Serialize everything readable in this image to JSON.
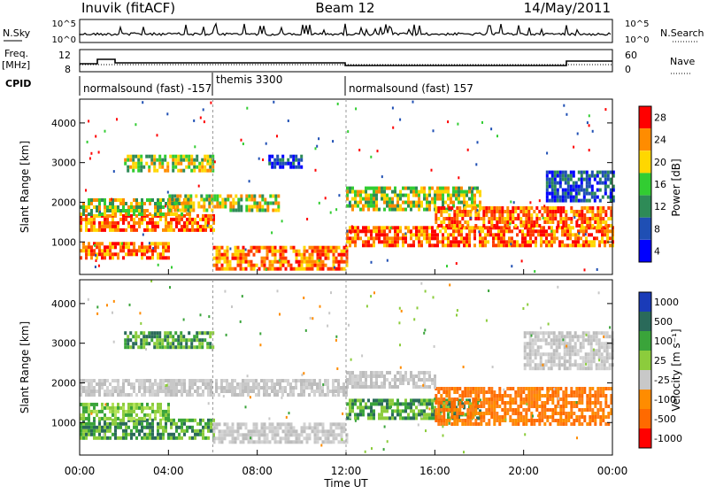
{
  "header": {
    "station": "Inuvik (fitACF)",
    "beam": "Beam 12",
    "date": "14/May/2011"
  },
  "top_strip": {
    "left_label": "N.Sky",
    "left_ticks": [
      "10^5",
      "10^0"
    ],
    "right_label": "N.Search",
    "right_ticks": [
      "10^5",
      "10^0"
    ]
  },
  "freq_strip": {
    "left_label_1": "Freq.",
    "left_label_2": "[MHz]",
    "left_ticks": [
      "12",
      "8"
    ],
    "right_label": "Nave",
    "right_ticks": [
      "60",
      "0"
    ]
  },
  "cpid": {
    "label": "CPID",
    "segments": [
      {
        "text": "normalsound (fast) -157",
        "start_hour": 0.0
      },
      {
        "text": "themis 3300",
        "start_hour": 6.0
      },
      {
        "text": "normalsound (fast) 157",
        "start_hour": 12.0
      }
    ]
  },
  "x_axis": {
    "title": "Time UT",
    "ticks": [
      "00:00",
      "04:00",
      "08:00",
      "12:00",
      "16:00",
      "20:00",
      "00:00"
    ],
    "tick_hours": [
      0,
      4,
      8,
      12,
      16,
      20,
      24
    ]
  },
  "colorbars": {
    "power": {
      "label": "Power [dB]",
      "ticks": [
        "28",
        "24",
        "20",
        "16",
        "12",
        "8",
        "4"
      ],
      "colors": [
        "#ff0000",
        "#ff8c00",
        "#ffd700",
        "#32cd32",
        "#2e8b57",
        "#1f4fb4",
        "#0000ff"
      ]
    },
    "velocity": {
      "label": "Velocity [m s⁻¹]",
      "ticks": [
        "1000",
        "500",
        "100",
        "25",
        "-25",
        "-100",
        "-500",
        "-1000"
      ],
      "colors": [
        "#1a3bb8",
        "#2a6a5a",
        "#3aa43a",
        "#8ccc3c",
        "#c8c8c8",
        "#ff8c00",
        "#ff6a00",
        "#ff0000"
      ]
    }
  },
  "chart_data": [
    {
      "type": "heatmap",
      "ylabel": "Slant Range [km]",
      "xlabel": "",
      "ylim": [
        180,
        4600
      ],
      "xlim": [
        0,
        24
      ],
      "y_ticks": [
        1000,
        2000,
        3000,
        4000
      ],
      "colorbar_label": "Power [dB]",
      "bands": [
        {
          "t0": 0.0,
          "t1": 6.0,
          "r0": 1300,
          "r1": 1700,
          "level": "high"
        },
        {
          "t0": 0.0,
          "t1": 5.0,
          "r0": 1700,
          "r1": 2100,
          "level": "mid"
        },
        {
          "t0": 0.0,
          "t1": 4.0,
          "r0": 600,
          "r1": 1000,
          "level": "high"
        },
        {
          "t0": 2.0,
          "t1": 6.0,
          "r0": 2800,
          "r1": 3200,
          "level": "mid"
        },
        {
          "t0": 4.0,
          "t1": 9.0,
          "r0": 1800,
          "r1": 2200,
          "level": "mid"
        },
        {
          "t0": 6.0,
          "t1": 12.0,
          "r0": 300,
          "r1": 900,
          "level": "high"
        },
        {
          "t0": 8.5,
          "t1": 10.0,
          "r0": 2900,
          "r1": 3200,
          "level": "low"
        },
        {
          "t0": 12.0,
          "t1": 18.0,
          "r0": 1800,
          "r1": 2400,
          "level": "mid"
        },
        {
          "t0": 12.0,
          "t1": 24.0,
          "r0": 900,
          "r1": 1400,
          "level": "high"
        },
        {
          "t0": 16.0,
          "t1": 24.0,
          "r0": 1400,
          "r1": 1900,
          "level": "high"
        },
        {
          "t0": 21.0,
          "t1": 24.0,
          "r0": 2000,
          "r1": 2800,
          "level": "low"
        }
      ]
    },
    {
      "type": "heatmap",
      "ylabel": "Slant Range [km]",
      "xlabel": "Time UT",
      "ylim": [
        180,
        4600
      ],
      "xlim": [
        0,
        24
      ],
      "y_ticks": [
        1000,
        2000,
        3000,
        4000
      ],
      "colorbar_label": "Velocity [m s⁻¹]",
      "bands": [
        {
          "t0": 0.0,
          "t1": 12.0,
          "r0": 1700,
          "r1": 2100,
          "level": "gray"
        },
        {
          "t0": 0.0,
          "t1": 6.0,
          "r0": 600,
          "r1": 1100,
          "level": "green"
        },
        {
          "t0": 0.0,
          "t1": 4.0,
          "r0": 1100,
          "r1": 1500,
          "level": "lightgreen"
        },
        {
          "t0": 2.0,
          "t1": 6.0,
          "r0": 2900,
          "r1": 3300,
          "level": "green"
        },
        {
          "t0": 6.0,
          "t1": 12.0,
          "r0": 500,
          "r1": 1000,
          "level": "gray"
        },
        {
          "t0": 12.0,
          "t1": 18.0,
          "r0": 1100,
          "r1": 1600,
          "level": "green"
        },
        {
          "t0": 16.0,
          "t1": 24.0,
          "r0": 1000,
          "r1": 1900,
          "level": "orange"
        },
        {
          "t0": 12.0,
          "t1": 16.0,
          "r0": 1900,
          "r1": 2300,
          "level": "gray"
        },
        {
          "t0": 20.0,
          "t1": 24.0,
          "r0": 2400,
          "r1": 3300,
          "level": "gray"
        }
      ]
    }
  ]
}
